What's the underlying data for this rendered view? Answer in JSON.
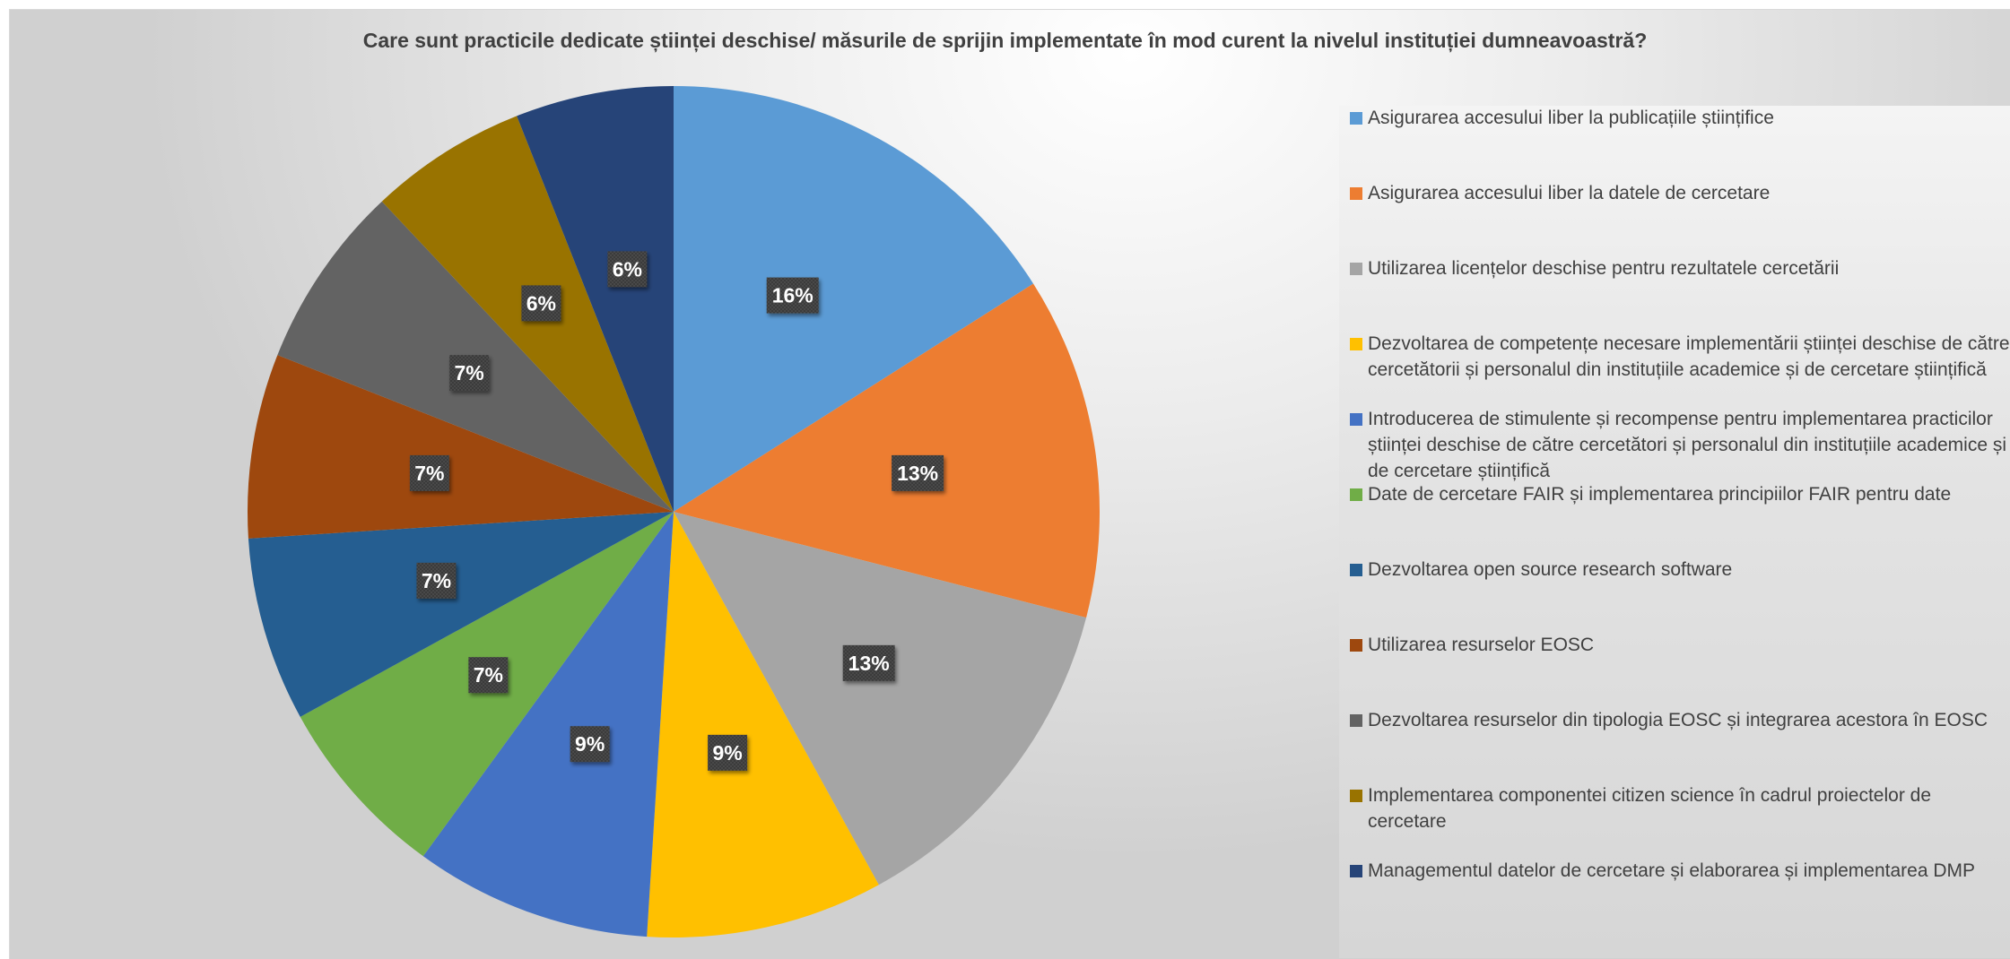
{
  "chart_data": {
    "type": "pie",
    "title": "Care sunt practicile dedicate științei deschise/ măsurile de sprijin implementate în mod curent la nivelul instituției dumneavoastră?",
    "slices": [
      {
        "label": "Asigurarea accesului liber la publicațiile științifice",
        "value": 16,
        "data_label": "16%",
        "color": "#5B9BD5"
      },
      {
        "label": "Asigurarea accesului liber la datele de cercetare",
        "value": 13,
        "data_label": "13%",
        "color": "#ED7D31"
      },
      {
        "label": "Utilizarea licențelor deschise pentru rezultatele cercetării",
        "value": 13,
        "data_label": "13%",
        "color": "#A5A5A5"
      },
      {
        "label": "Dezvoltarea de competențe necesare implementării științei deschise de către cercetătorii și personalul din instituțiile academice și de cercetare științifică",
        "value": 9,
        "data_label": "9%",
        "color": "#FFC000"
      },
      {
        "label": "Introducerea de stimulente și recompense pentru implementarea practicilor științei deschise de către cercetători și personalul din instituțiile academice și de cercetare științifică",
        "value": 9,
        "data_label": "9%",
        "color": "#4472C4"
      },
      {
        "label": "Date de cercetare FAIR și implementarea principiilor FAIR pentru date",
        "value": 7,
        "data_label": "7%",
        "color": "#70AD47"
      },
      {
        "label": "Dezvoltarea open source research software",
        "value": 7,
        "data_label": "7%",
        "color": "#255E91"
      },
      {
        "label": "Utilizarea resurselor EOSC",
        "value": 7,
        "data_label": "7%",
        "color": "#9E480E"
      },
      {
        "label": "Dezvoltarea resurselor din tipologia EOSC și integrarea acestora în EOSC",
        "value": 7,
        "data_label": "7%",
        "color": "#636363"
      },
      {
        "label": "Implementarea componentei citizen science în cadrul proiectelor de cercetare",
        "value": 6,
        "data_label": "6%",
        "color": "#997300"
      },
      {
        "label": "Managementul datelor de cercetare și elaborarea și implementarea DMP",
        "value": 6,
        "data_label": "6%",
        "color": "#264478"
      }
    ],
    "legend_position": "right"
  }
}
